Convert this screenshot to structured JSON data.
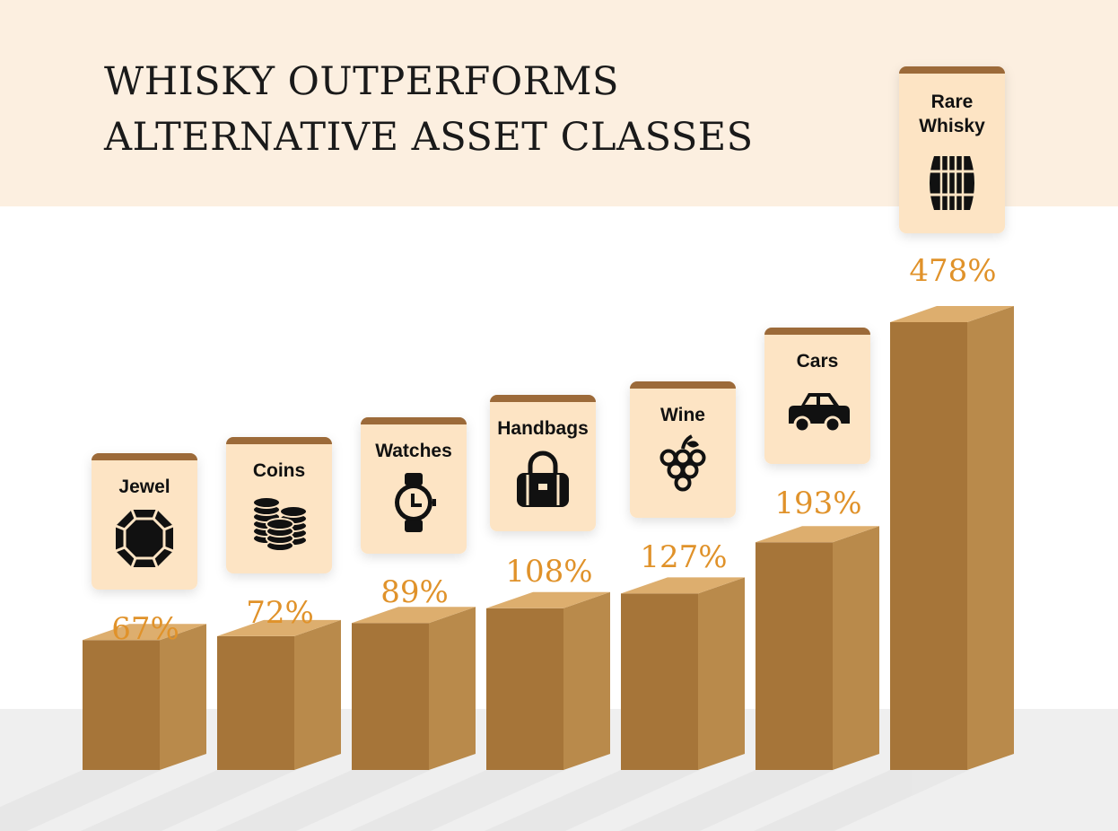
{
  "chart_data": {
    "type": "bar",
    "title_lines": [
      "WHISKY OUTPERFORMS",
      "ALTERNATIVE ASSET CLASSES"
    ],
    "categories": [
      "Jewel",
      "Coins",
      "Watches",
      "Handbags",
      "Wine",
      "Cars",
      "Rare Whisky"
    ],
    "values": [
      67,
      72,
      89,
      108,
      127,
      193,
      478
    ],
    "value_labels": [
      "67%",
      "72%",
      "89%",
      "108%",
      "127%",
      "193%",
      "478%"
    ],
    "icons": [
      "jewel-icon",
      "coins-icon",
      "watch-icon",
      "handbag-icon",
      "grapes-icon",
      "car-icon",
      "barrel-icon"
    ],
    "xlabel": "",
    "ylabel": "",
    "grid": false,
    "legend": "none"
  },
  "colors": {
    "header_bg": "#fcefe0",
    "card_bg": "#fde4c4",
    "card_top": "#9c6a39",
    "bar_front": "#a67539",
    "bar_side": "#b98a4b",
    "bar_top": "#ddae6e",
    "value_label": "#e0922a",
    "floor": "#efefef"
  }
}
